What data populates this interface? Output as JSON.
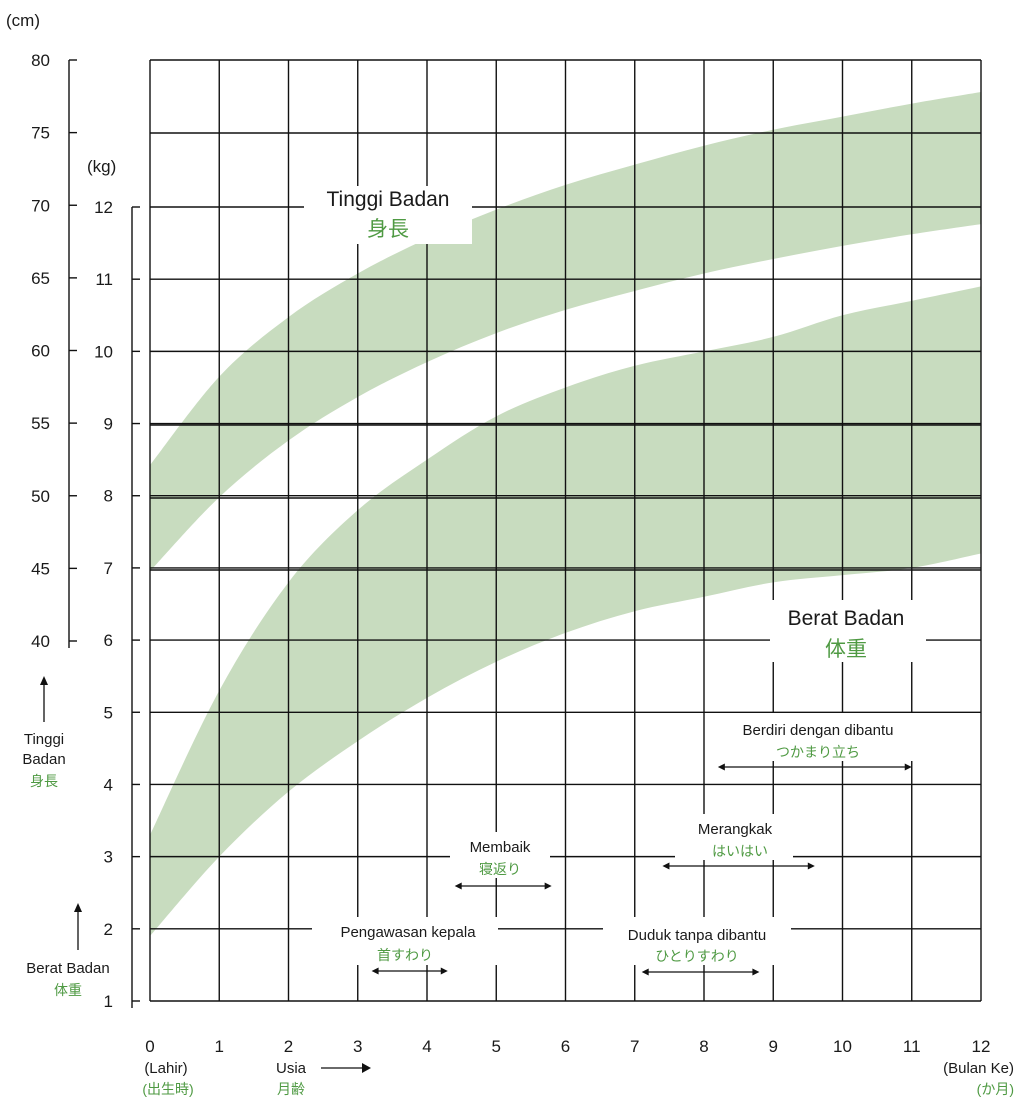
{
  "colors": {
    "band": "#c8dcbf",
    "grid": "#111111",
    "green_text": "#4f9a43"
  },
  "units": {
    "cm": "(cm)",
    "kg": "(kg)"
  },
  "axis_left": {
    "title_id": "Tinggi Badan",
    "title_id_line1": "Tinggi",
    "title_id_line2": "Badan",
    "title_jp": "身長",
    "ticks": [
      "40",
      "45",
      "50",
      "55",
      "60",
      "65",
      "70",
      "75",
      "80"
    ]
  },
  "axis_weight": {
    "title_id": "Berat Badan",
    "title_jp": "体重",
    "ticks": [
      "1",
      "2",
      "3",
      "4",
      "5",
      "6",
      "7",
      "8",
      "9",
      "10",
      "11",
      "12"
    ]
  },
  "axis_x": {
    "ticks": [
      "0",
      "1",
      "2",
      "3",
      "4",
      "5",
      "6",
      "7",
      "8",
      "9",
      "10",
      "11",
      "12"
    ],
    "birth_id": "(Lahir)",
    "birth_jp": "(出生時)",
    "age_id": "Usia",
    "age_jp": "月齢",
    "month_id": "(Bulan Ke)",
    "month_jp": "(か月)"
  },
  "band_labels": {
    "height_id": "Tinggi Badan",
    "height_jp": "身長",
    "weight_id": "Berat Badan",
    "weight_jp": "体重"
  },
  "milestones": [
    {
      "id": "Pengawasan kepala",
      "jp": "首すわり",
      "from": 3.2,
      "to": 4.3
    },
    {
      "id": "Membaik",
      "jp": "寝返り",
      "from": 4.4,
      "to": 5.8
    },
    {
      "id": "Duduk tanpa dibantu",
      "jp": "ひとりすわり",
      "from": 7.1,
      "to": 8.8
    },
    {
      "id": "Merangkak",
      "jp": "はいはい",
      "from": 7.4,
      "to": 9.6
    },
    {
      "id": "Berdiri dengan dibantu",
      "jp": "つかまり立ち",
      "from": 8.2,
      "to": 11.0
    }
  ],
  "chart_data": {
    "type": "area",
    "x_unit": "month",
    "xlim": [
      0,
      12
    ],
    "y_left_unit": "cm",
    "y_left_lim": [
      40,
      80
    ],
    "y_right_unit": "kg",
    "y_right_lim": [
      1,
      12
    ],
    "grid": true,
    "x": [
      0,
      1,
      2,
      3,
      4,
      5,
      6,
      7,
      8,
      9,
      10,
      11,
      12
    ],
    "series": [
      {
        "name": "Tinggi Badan",
        "axis": "cm",
        "upper": [
          52.1,
          58.2,
          62.3,
          65.3,
          67.7,
          69.7,
          71.4,
          72.8,
          74.1,
          75.2,
          76.1,
          77.0,
          77.8
        ],
        "lower": [
          44.8,
          49.9,
          53.8,
          56.8,
          59.2,
          61.2,
          62.8,
          64.1,
          65.3,
          66.3,
          67.2,
          68.0,
          68.7
        ]
      },
      {
        "name": "Berat Badan",
        "axis": "kg",
        "upper": [
          3.3,
          5.3,
          6.8,
          7.8,
          8.5,
          9.1,
          9.5,
          9.8,
          10.0,
          10.2,
          10.5,
          10.7,
          10.9
        ],
        "lower": [
          1.9,
          3.0,
          3.9,
          4.6,
          5.2,
          5.7,
          6.1,
          6.4,
          6.6,
          6.8,
          6.9,
          7.0,
          7.2
        ]
      }
    ]
  }
}
